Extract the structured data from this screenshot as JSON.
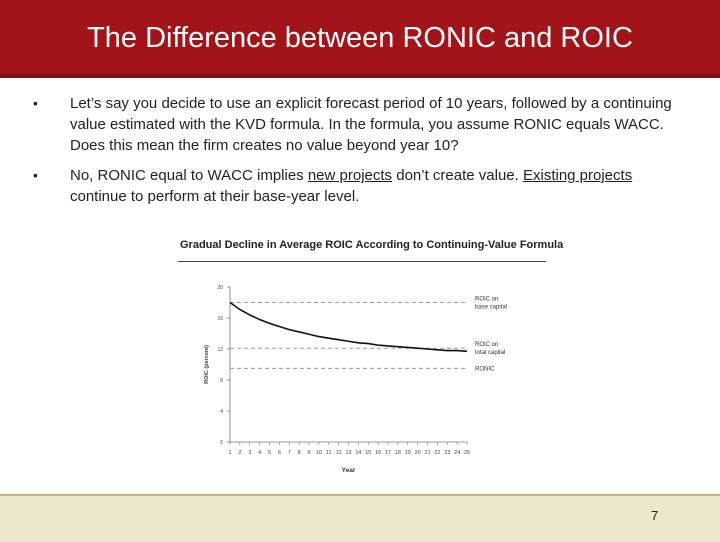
{
  "slide": {
    "title": "The Difference between RONIC and ROIC",
    "bullets": [
      {
        "marker": "•",
        "text": "Let’s say you decide to use an explicit forecast period of 10 years, followed by a continuing value estimated with the KVD formula.  In the formula, you assume RONIC equals WACC.  Does this mean the firm creates no value beyond year 10?"
      },
      {
        "marker": "•",
        "pre": "No, RONIC equal to WACC implies ",
        "u1": "new projects",
        "mid": " don’t create value.  ",
        "u2": "Existing projects",
        "post": " continue to perform at their base-year level."
      }
    ],
    "page_number": "7"
  },
  "chart_data": {
    "type": "line",
    "title": "Gradual Decline in Average ROIC According to Continuing-Value Formula",
    "xlabel": "Year",
    "ylabel": "ROIC (percent)",
    "x": [
      1,
      2,
      3,
      4,
      5,
      6,
      7,
      8,
      9,
      10,
      11,
      12,
      13,
      14,
      15,
      16,
      17,
      18,
      19,
      20,
      21,
      22,
      23,
      24,
      25
    ],
    "ylim": [
      0,
      20
    ],
    "yticks": [
      0,
      4,
      8,
      12,
      16,
      20
    ],
    "series": [
      {
        "name": "ROIC on total capital",
        "values": [
          18.0,
          17.1,
          16.4,
          15.8,
          15.3,
          14.9,
          14.5,
          14.2,
          13.9,
          13.6,
          13.4,
          13.2,
          13.0,
          12.8,
          12.7,
          12.5,
          12.4,
          12.3,
          12.2,
          12.1,
          12.0,
          11.9,
          11.8,
          11.8,
          11.7
        ]
      }
    ],
    "reference_lines": [
      {
        "name": "ROIC on base capital",
        "value": 18
      },
      {
        "name": "ROIC on total capital",
        "value": 12.1
      },
      {
        "name": "RONIC",
        "value": 9.5
      }
    ],
    "line_color": "#111111",
    "ref_color": "#9a9a9a"
  }
}
